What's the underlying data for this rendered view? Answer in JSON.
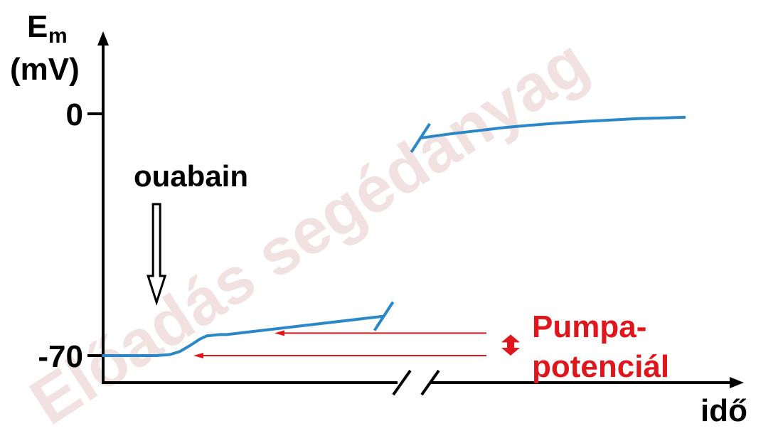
{
  "chart_data": {
    "type": "line",
    "title": "",
    "ylabel": {
      "main": "E",
      "sub": "m",
      "unit": "(mV)"
    },
    "xlabel": "idő",
    "yticks": [
      {
        "value": 0,
        "label": "0"
      },
      {
        "value": -70,
        "label": "-70"
      }
    ],
    "ylim": [
      -78,
      24
    ],
    "x_axis_break": true,
    "series": [
      {
        "segment": "before-break",
        "points": [
          [
            0,
            -70
          ],
          [
            0.8,
            -70
          ],
          [
            1.0,
            -69.7
          ],
          [
            1.15,
            -68.8
          ],
          [
            1.3,
            -67.1
          ],
          [
            1.45,
            -65.2
          ],
          [
            1.55,
            -64.3
          ],
          [
            1.75,
            -63.9
          ],
          [
            1.85,
            -63.9
          ],
          [
            4.2,
            -58.6
          ]
        ]
      },
      {
        "segment": "after-break",
        "points": [
          [
            4.75,
            -7
          ],
          [
            5.2,
            -5.8
          ],
          [
            5.6,
            -4.9
          ],
          [
            6.0,
            -4.0
          ],
          [
            6.4,
            -3.3
          ],
          [
            6.8,
            -2.7
          ],
          [
            7.2,
            -2.2
          ],
          [
            7.6,
            -1.8
          ],
          [
            8.0,
            -1.4
          ],
          [
            8.4,
            -1.2
          ],
          [
            8.7,
            -1.0
          ]
        ]
      }
    ],
    "xlim": [
      0,
      9.1
    ],
    "annotations": {
      "drug_label": "ouabain",
      "drug_time": 0.8,
      "pump_label_line1": "Pumpa-",
      "pump_label_line2": "potenciál",
      "pump_upper_mV": -63.9,
      "pump_lower_mV": -70
    },
    "watermark": "Előadás segédanyag",
    "colors": {
      "trace": "#2a87c8",
      "axis": "#000000",
      "annotation": "#e0161d",
      "watermark": "#f2e1e1"
    }
  }
}
